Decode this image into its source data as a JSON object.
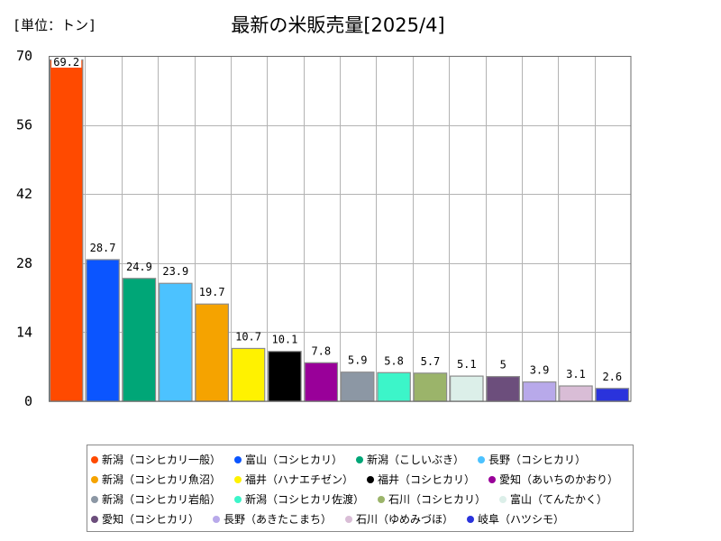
{
  "chart_data": {
    "type": "bar",
    "title": "最新の米販売量[2025/4]",
    "unit": "[単位：トン]",
    "categories": [
      "新潟（コシヒカリ一般）",
      "富山（コシヒカリ）",
      "新潟（こしいぶき）",
      "長野（コシヒカリ）",
      "新潟（コシヒカリ魚沼）",
      "福井（ハナエチゼン）",
      "福井（コシヒカリ）",
      "愛知（あいちのかおり）",
      "新潟（コシヒカリ岩船）",
      "新潟（コシヒカリ佐渡）",
      "石川（コシヒカリ）",
      "富山（てんたかく）",
      "愛知（コシヒカリ）",
      "長野（あきたこまち）",
      "石川（ゆめみづほ）",
      "岐阜（ハツシモ）"
    ],
    "values": [
      69.2,
      28.7,
      24.9,
      23.9,
      19.7,
      10.7,
      10.1,
      7.8,
      5.9,
      5.8,
      5.7,
      5.1,
      5,
      3.9,
      3.1,
      2.6
    ],
    "colors": [
      "#ff4a00",
      "#0b55ff",
      "#00a677",
      "#4cc2ff",
      "#f5a300",
      "#fff200",
      "#000000",
      "#990099",
      "#8c97a4",
      "#3cf5c9",
      "#9bb46a",
      "#dcefe9",
      "#6c4e7c",
      "#b8a9ea",
      "#d9bdd6",
      "#2a33dc"
    ],
    "ylim": [
      0,
      70
    ],
    "yticks": [
      0,
      14,
      28,
      42,
      56,
      70
    ],
    "grid": true,
    "legend_position": "bottom"
  }
}
